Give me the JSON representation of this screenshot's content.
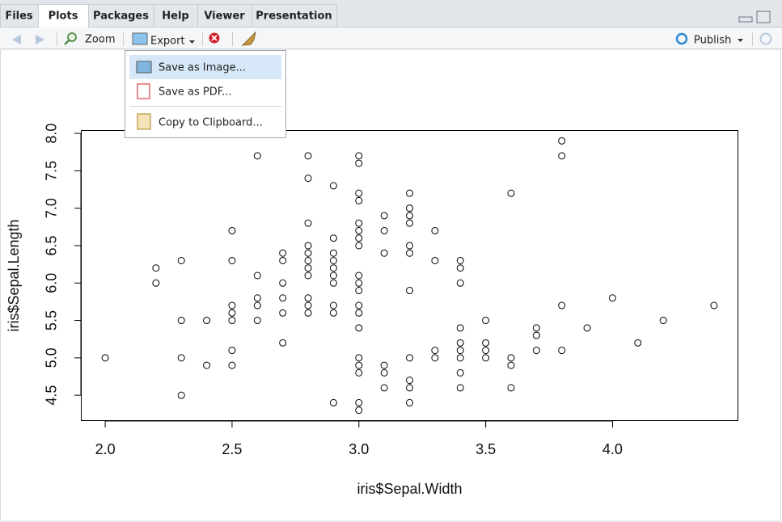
{
  "tabs": [
    "Files",
    "Plots",
    "Packages",
    "Help",
    "Viewer",
    "Presentation"
  ],
  "toolbar": {
    "zoom": "Zoom",
    "export": "Export",
    "publish": "Publish"
  },
  "menu": [
    "Save as Image...",
    "Save as PDF...",
    "Copy to Clipboard..."
  ],
  "chart_data": {
    "type": "scatter",
    "x_label": "iris$Sepal.Width",
    "y_label": "iris$Sepal.Length",
    "x": [
      2.0,
      2.2,
      2.2,
      2.3,
      2.3,
      2.3,
      2.3,
      2.4,
      2.4,
      2.5,
      2.5,
      2.5,
      2.5,
      2.5,
      2.5,
      2.5,
      2.6,
      2.6,
      2.6,
      2.6,
      2.6,
      2.7,
      2.7,
      2.7,
      2.7,
      2.7,
      2.7,
      2.8,
      2.8,
      2.8,
      2.8,
      2.8,
      2.8,
      2.8,
      2.8,
      2.8,
      2.8,
      2.8,
      2.9,
      2.9,
      2.9,
      2.9,
      2.9,
      2.9,
      2.9,
      2.9,
      2.9,
      2.9,
      3.0,
      3.0,
      3.0,
      3.0,
      3.0,
      3.0,
      3.0,
      3.0,
      3.0,
      3.0,
      3.0,
      3.0,
      3.0,
      3.0,
      3.0,
      3.0,
      3.0,
      3.0,
      3.0,
      3.1,
      3.1,
      3.1,
      3.1,
      3.1,
      3.1,
      3.2,
      3.2,
      3.2,
      3.2,
      3.2,
      3.2,
      3.2,
      3.2,
      3.2,
      3.2,
      3.2,
      3.3,
      3.3,
      3.3,
      3.3,
      3.4,
      3.4,
      3.4,
      3.4,
      3.4,
      3.4,
      3.4,
      3.4,
      3.4,
      3.5,
      3.5,
      3.5,
      3.5,
      3.6,
      3.6,
      3.6,
      3.6,
      3.7,
      3.7,
      3.7,
      3.8,
      3.8,
      3.8,
      3.8,
      3.9,
      4.0,
      4.1,
      4.2,
      4.4
    ],
    "values": [
      5.0,
      6.2,
      6.0,
      6.3,
      5.5,
      5.0,
      4.5,
      5.5,
      4.9,
      6.7,
      6.3,
      5.7,
      5.6,
      5.5,
      5.1,
      4.9,
      7.7,
      6.1,
      5.8,
      5.7,
      5.5,
      6.4,
      6.3,
      6.0,
      5.8,
      5.6,
      5.2,
      7.7,
      7.4,
      6.8,
      6.5,
      6.4,
      6.3,
      6.2,
      6.1,
      5.8,
      5.7,
      5.6,
      7.3,
      6.6,
      6.4,
      6.3,
      6.2,
      6.1,
      6.0,
      5.7,
      5.6,
      4.4,
      7.7,
      7.6,
      7.2,
      7.1,
      6.8,
      6.7,
      6.6,
      6.5,
      6.1,
      6.0,
      5.9,
      5.7,
      5.6,
      5.4,
      5.0,
      4.9,
      4.8,
      4.4,
      4.3,
      6.9,
      6.7,
      6.4,
      4.9,
      4.8,
      4.6,
      7.2,
      7.0,
      6.9,
      6.8,
      6.5,
      6.4,
      5.9,
      5.0,
      4.7,
      4.6,
      4.4,
      6.7,
      6.3,
      5.1,
      5.0,
      6.3,
      6.2,
      6.0,
      5.4,
      5.2,
      5.1,
      5.0,
      4.8,
      4.6,
      5.5,
      5.2,
      5.1,
      5.0,
      7.2,
      5.0,
      4.9,
      4.6,
      5.4,
      5.3,
      5.1,
      7.9,
      7.7,
      5.7,
      5.1,
      5.4,
      5.8,
      5.2,
      5.5,
      5.7
    ],
    "color": "#000000",
    "xlim": [
      1.904,
      4.496
    ],
    "ylim": [
      4.156,
      8.044
    ],
    "xticks": [
      {
        "value": 2.0,
        "label": "2.0"
      },
      {
        "value": 2.5,
        "label": "2.5"
      },
      {
        "value": 3.0,
        "label": "3.0"
      },
      {
        "value": 3.5,
        "label": "3.5"
      },
      {
        "value": 4.0,
        "label": "4.0"
      }
    ],
    "yticks": [
      {
        "value": 4.5,
        "label": "4.5"
      },
      {
        "value": 5.0,
        "label": "5.0"
      },
      {
        "value": 5.5,
        "label": "5.5"
      },
      {
        "value": 6.0,
        "label": "6.0"
      },
      {
        "value": 6.5,
        "label": "6.5"
      },
      {
        "value": 7.0,
        "label": "7.0"
      },
      {
        "value": 7.5,
        "label": "7.5"
      },
      {
        "value": 8.0,
        "label": "8.0"
      }
    ],
    "grid": false
  }
}
